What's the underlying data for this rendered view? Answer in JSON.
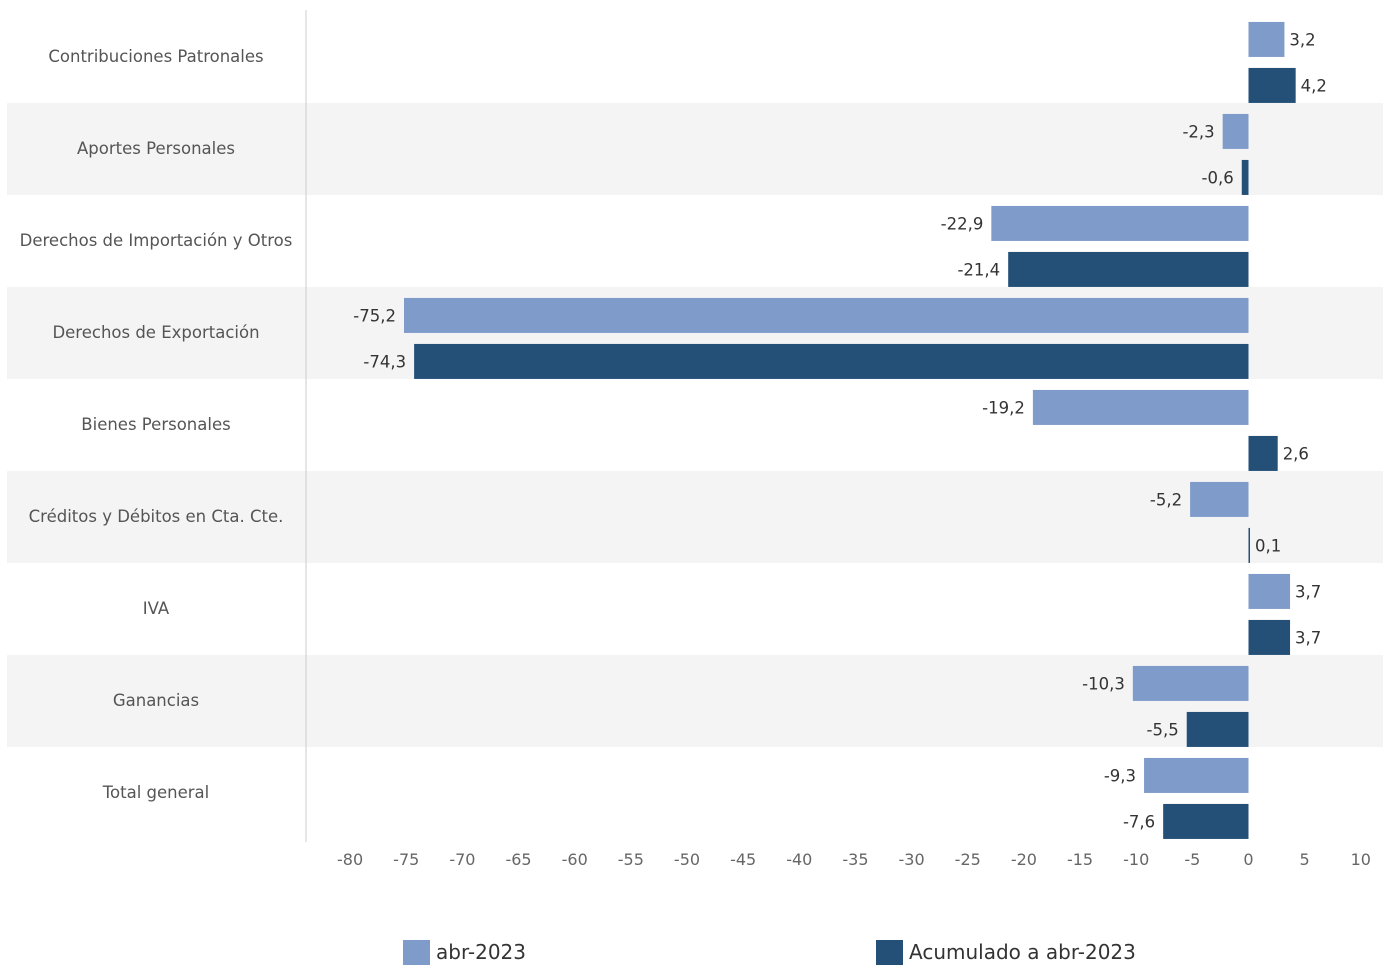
{
  "colors": {
    "series_light": "#7f9bc9",
    "series_dark": "#244f77",
    "band": "#f4f4f4",
    "axis_line": "#cccccc"
  },
  "chart_data": {
    "type": "bar",
    "orientation": "horizontal",
    "categories": [
      "Contribuciones Patronales",
      "Aportes Personales",
      "Derechos de Importación y Otros",
      "Derechos de Exportación",
      "Bienes Personales",
      "Créditos y Débitos en Cta. Cte.",
      "IVA",
      "Ganancias",
      "Total general"
    ],
    "series": [
      {
        "name": "abr-2023",
        "color": "#7f9bc9",
        "values": [
          3.2,
          -2.3,
          -22.9,
          -75.2,
          -19.2,
          -5.2,
          3.7,
          -10.3,
          -9.3
        ],
        "labels": [
          "3,2",
          "-2,3",
          "-22,9",
          "-75,2",
          "-19,2",
          "-5,2",
          "3,7",
          "-10,3",
          "-9,3"
        ]
      },
      {
        "name": "Acumulado a abr-2023",
        "color": "#244f77",
        "values": [
          4.2,
          -0.6,
          -21.4,
          -74.3,
          2.6,
          0.1,
          3.7,
          -5.5,
          -7.6
        ],
        "labels": [
          "4,2",
          "-0,6",
          "-21,4",
          "-74,3",
          "2,6",
          "0,1",
          "3,7",
          "-5,5",
          "-7,6"
        ]
      }
    ],
    "xlim": [
      -80,
      10
    ],
    "xticks": [
      -80,
      -75,
      -70,
      -65,
      -60,
      -55,
      -50,
      -45,
      -40,
      -35,
      -30,
      -25,
      -20,
      -15,
      -10,
      -5,
      0,
      5,
      10
    ],
    "xtick_labels": [
      "-80",
      "-75",
      "-70",
      "-65",
      "-60",
      "-55",
      "-50",
      "-45",
      "-40",
      "-35",
      "-30",
      "-25",
      "-20",
      "-15",
      "-10",
      "-5",
      "0",
      "5",
      "10"
    ],
    "legend_position": "bottom",
    "alternating_row_bands": true
  },
  "legend": {
    "items": [
      "abr-2023",
      "Acumulado a abr-2023"
    ]
  }
}
